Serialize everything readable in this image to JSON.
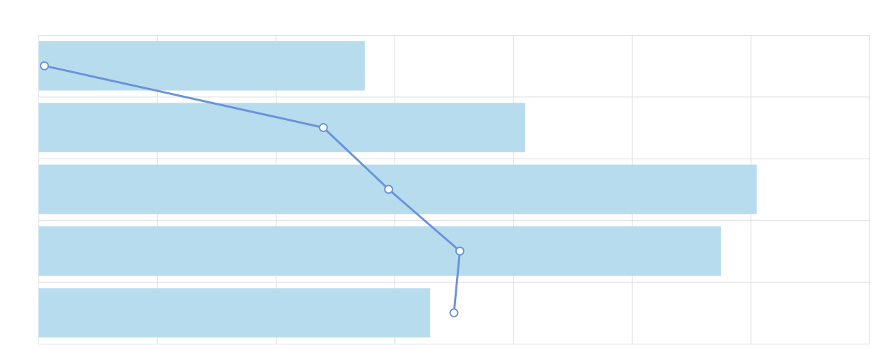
{
  "chart_data": {
    "type": "bar",
    "orientation": "horizontal",
    "grid": true,
    "legend": "none",
    "xlim": [
      0,
      7
    ],
    "category_count": 5,
    "series": [
      {
        "type": "bar",
        "values": [
          2.75,
          4.1,
          6.05,
          5.75,
          3.3
        ],
        "color": "#b3daed"
      },
      {
        "type": "line",
        "values": [
          0.05,
          2.4,
          2.95,
          3.55,
          3.5
        ],
        "color": "#6a93d9"
      }
    ]
  }
}
